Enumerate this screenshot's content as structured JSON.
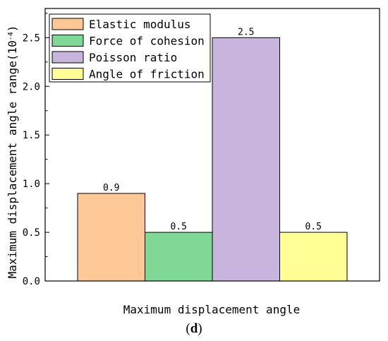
{
  "chart_data": {
    "type": "bar",
    "xlabel": "Maximum displacement angle",
    "ylabel_text": "Maximum displacement angle range",
    "ylabel_unit_base": "(10",
    "ylabel_unit_exp": "-4",
    "ylabel_unit_close": ")",
    "ylim": [
      0,
      2.8
    ],
    "yticks": [
      0.0,
      0.5,
      1.0,
      1.5,
      2.0,
      2.5
    ],
    "ytick_labels": [
      "0.0",
      "0.5",
      "1.0",
      "1.5",
      "2.0",
      "2.5"
    ],
    "grid": false,
    "legend_position": "top-left",
    "series": [
      {
        "name": "Elastic modulus",
        "value": 0.9,
        "label": "0.9",
        "color": "#FFC896"
      },
      {
        "name": "Force of cohesion",
        "value": 0.5,
        "label": "0.5",
        "color": "#7FD896"
      },
      {
        "name": "Poisson ratio",
        "value": 2.5,
        "label": "2.5",
        "color": "#C8B4DC"
      },
      {
        "name": "Angle of friction",
        "value": 0.5,
        "label": "0.5",
        "color": "#FFFF96"
      }
    ]
  },
  "caption": {
    "open": "(",
    "letter": "d",
    "close": ")"
  }
}
